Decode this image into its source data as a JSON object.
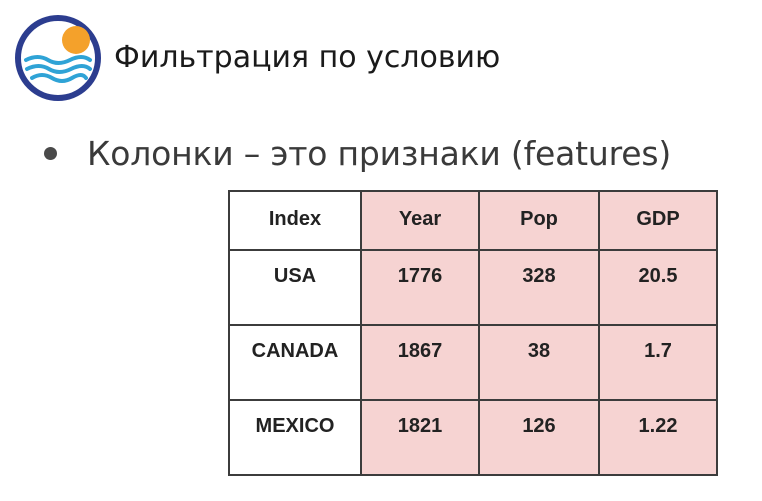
{
  "slide": {
    "title": "Фильтрация по условию",
    "bullet": "Колонки – это признаки (features)",
    "logo_icon": "sun-over-waves-logo",
    "colors": {
      "logo_ring": "#2c3d8f",
      "logo_sun": "#f4a12b",
      "logo_waves": "#2fa3d6",
      "feature_fill": "#f6d3d2",
      "border": "#3c3c3c"
    }
  },
  "table": {
    "headers": [
      "Index",
      "Year",
      "Pop",
      "GDP"
    ],
    "rows": [
      {
        "index": "USA",
        "year": "1776",
        "pop": "328",
        "gdp": "20.5"
      },
      {
        "index": "CANADA",
        "year": "1867",
        "pop": "38",
        "gdp": "1.7"
      },
      {
        "index": "MEXICO",
        "year": "1821",
        "pop": "126",
        "gdp": "1.22"
      }
    ]
  }
}
